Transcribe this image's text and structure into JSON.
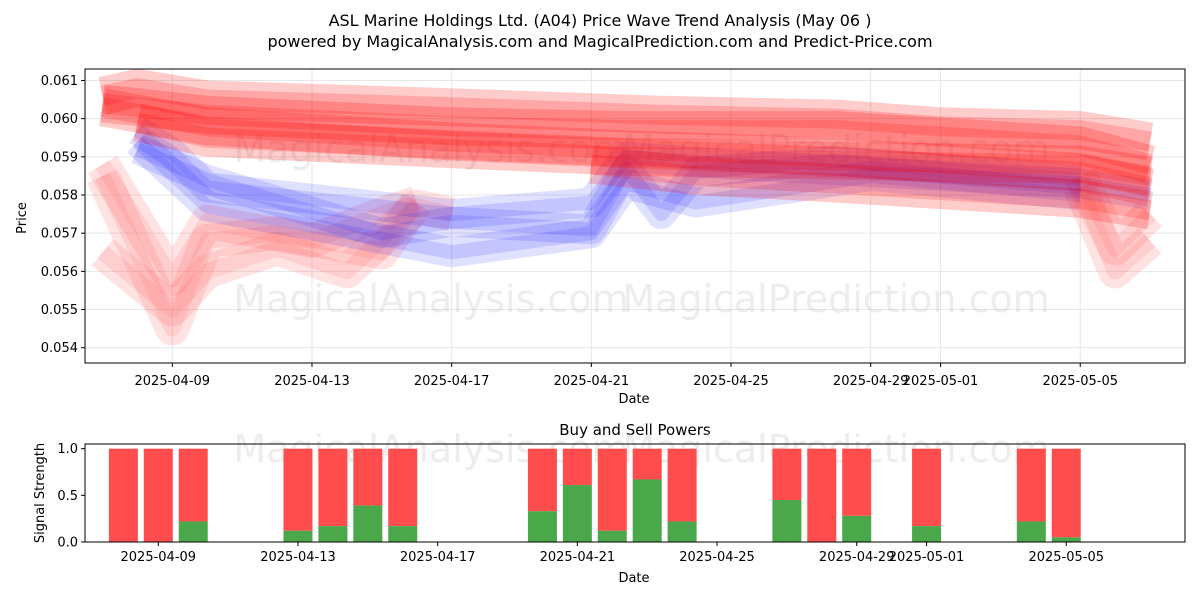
{
  "chart_data": [
    {
      "type": "line",
      "title": "ASL Marine Holdings Ltd. (A04) Price Wave Trend Analysis (May 06 )",
      "subtitle": "powered by MagicalAnalysis.com and MagicalPrediction.com and Predict-Price.com",
      "xlabel": "Date",
      "ylabel": "Price",
      "xlim": [
        "2025-04-06 12:00",
        "2025-05-08 00:00"
      ],
      "ylim": [
        0.0536,
        0.0613
      ],
      "x_ticks": [
        "2025-04-09",
        "2025-04-13",
        "2025-04-17",
        "2025-04-21",
        "2025-04-25",
        "2025-04-29",
        "2025-05-01",
        "2025-05-05"
      ],
      "y_ticks": [
        "0.054",
        "0.055",
        "0.056",
        "0.057",
        "0.058",
        "0.059",
        "0.060",
        "0.061"
      ],
      "grid": true,
      "colors": {
        "red_band": "#ff0000",
        "blue_band": "#0000ff",
        "pink_band": "#ff6666"
      },
      "red_bands": [
        {
          "x": [
            "2025-04-07",
            "2025-04-08",
            "2025-04-10",
            "2025-04-17",
            "2025-04-23",
            "2025-04-28",
            "2025-05-01",
            "2025-05-05",
            "2025-05-07"
          ],
          "y": [
            0.0606,
            0.0608,
            0.0605,
            0.0603,
            0.0601,
            0.06,
            0.0598,
            0.0597,
            0.0594
          ]
        },
        {
          "x": [
            "2025-04-07",
            "2025-04-10",
            "2025-04-17",
            "2025-04-22",
            "2025-04-28",
            "2025-05-05",
            "2025-05-07"
          ],
          "y": [
            0.0604,
            0.0601,
            0.0598,
            0.0597,
            0.0597,
            0.0593,
            0.0588
          ]
        },
        {
          "x": [
            "2025-04-07",
            "2025-04-10",
            "2025-04-17",
            "2025-04-22",
            "2025-04-28",
            "2025-05-05",
            "2025-05-07"
          ],
          "y": [
            0.0603,
            0.0598,
            0.0594,
            0.0592,
            0.059,
            0.0586,
            0.0582
          ]
        },
        {
          "x": [
            "2025-04-08",
            "2025-04-10",
            "2025-04-17",
            "2025-04-22",
            "2025-04-28",
            "2025-05-05",
            "2025-05-07"
          ],
          "y": [
            0.0599,
            0.0595,
            0.0592,
            0.059,
            0.0589,
            0.0588,
            0.0585
          ]
        },
        {
          "x": [
            "2025-04-21",
            "2025-04-24",
            "2025-04-28",
            "2025-05-05",
            "2025-05-07"
          ],
          "y": [
            0.0588,
            0.0585,
            0.0583,
            0.0579,
            0.0576
          ]
        }
      ],
      "blue_bands": [
        {
          "x": [
            "2025-04-08",
            "2025-04-09",
            "2025-04-10",
            "2025-04-13",
            "2025-04-17",
            "2025-04-21",
            "2025-04-22",
            "2025-04-25",
            "2025-04-29",
            "2025-05-05",
            "2025-05-07"
          ],
          "y": [
            0.0597,
            0.0591,
            0.0582,
            0.0579,
            0.0575,
            0.0578,
            0.059,
            0.0588,
            0.0586,
            0.0583,
            0.058
          ]
        },
        {
          "x": [
            "2025-04-08",
            "2025-04-10",
            "2025-04-13",
            "2025-04-17",
            "2025-04-21",
            "2025-04-22",
            "2025-04-24",
            "2025-04-29",
            "2025-05-05"
          ],
          "y": [
            0.0594,
            0.0577,
            0.0572,
            0.0565,
            0.057,
            0.0583,
            0.0578,
            0.0585,
            0.058
          ]
        },
        {
          "x": [
            "2025-04-08",
            "2025-04-10",
            "2025-04-15",
            "2025-04-17",
            "2025-04-21",
            "2025-04-22",
            "2025-04-23",
            "2025-04-24",
            "2025-04-28",
            "2025-05-05"
          ],
          "y": [
            0.0592,
            0.0584,
            0.057,
            0.0573,
            0.0571,
            0.0587,
            0.0575,
            0.0586,
            0.0589,
            0.0584
          ]
        }
      ],
      "pink_bands": [
        {
          "x": [
            "2025-04-07",
            "2025-04-09",
            "2025-04-10",
            "2025-04-12",
            "2025-04-14",
            "2025-04-16",
            "2025-04-17"
          ],
          "y": [
            0.0565,
            0.055,
            0.056,
            0.0566,
            0.056,
            0.0577,
            0.0575
          ]
        },
        {
          "x": [
            "2025-04-07",
            "2025-04-09",
            "2025-04-10",
            "2025-04-12",
            "2025-04-15",
            "2025-04-16"
          ],
          "y": [
            0.0585,
            0.0545,
            0.0568,
            0.057,
            0.0565,
            0.0578
          ]
        },
        {
          "x": [
            "2025-04-07",
            "2025-04-09",
            "2025-04-10",
            "2025-04-13",
            "2025-04-15",
            "2025-04-16"
          ],
          "y": [
            0.0588,
            0.0558,
            0.0573,
            0.0568,
            0.0575,
            0.0578
          ]
        },
        {
          "x": [
            "2025-05-05",
            "2025-05-06",
            "2025-05-07"
          ],
          "y": [
            0.0582,
            0.056,
            0.0568
          ]
        },
        {
          "x": [
            "2025-05-05",
            "2025-05-06",
            "2025-05-07"
          ],
          "y": [
            0.0585,
            0.0566,
            0.0575
          ]
        }
      ]
    },
    {
      "type": "bar",
      "title": "Buy and Sell Powers",
      "xlabel": "Date",
      "ylabel": "Signal Strength",
      "ylim": [
        0,
        1.05
      ],
      "y_ticks": [
        "0.0",
        "0.5",
        "1.0"
      ],
      "x_ticks": [
        "2025-04-09",
        "2025-04-13",
        "2025-04-17",
        "2025-04-21",
        "2025-04-25",
        "2025-04-29",
        "2025-05-01",
        "2025-05-05"
      ],
      "colors": {
        "buy": "#4aa84a",
        "sell": "#ff4d4d"
      },
      "dates": [
        "2025-04-08",
        "2025-04-09",
        "2025-04-10",
        "2025-04-13",
        "2025-04-14",
        "2025-04-15",
        "2025-04-16",
        "2025-04-20",
        "2025-04-21",
        "2025-04-22",
        "2025-04-23",
        "2025-04-24",
        "2025-04-27",
        "2025-04-28",
        "2025-04-29",
        "2025-05-01",
        "2025-05-04",
        "2025-05-05"
      ],
      "buy": [
        0.0,
        0.0,
        0.22,
        0.12,
        0.17,
        0.39,
        0.17,
        0.33,
        0.61,
        0.12,
        0.67,
        0.22,
        0.45,
        0.0,
        0.28,
        0.17,
        0.22,
        0.05
      ],
      "total": [
        1,
        1,
        1,
        1,
        1,
        1,
        1,
        1,
        1,
        1,
        1,
        1,
        1,
        1,
        1,
        1,
        1,
        1
      ]
    }
  ],
  "watermarks": [
    "MagicalAnalysis.com",
    "MagicalPrediction.com"
  ]
}
